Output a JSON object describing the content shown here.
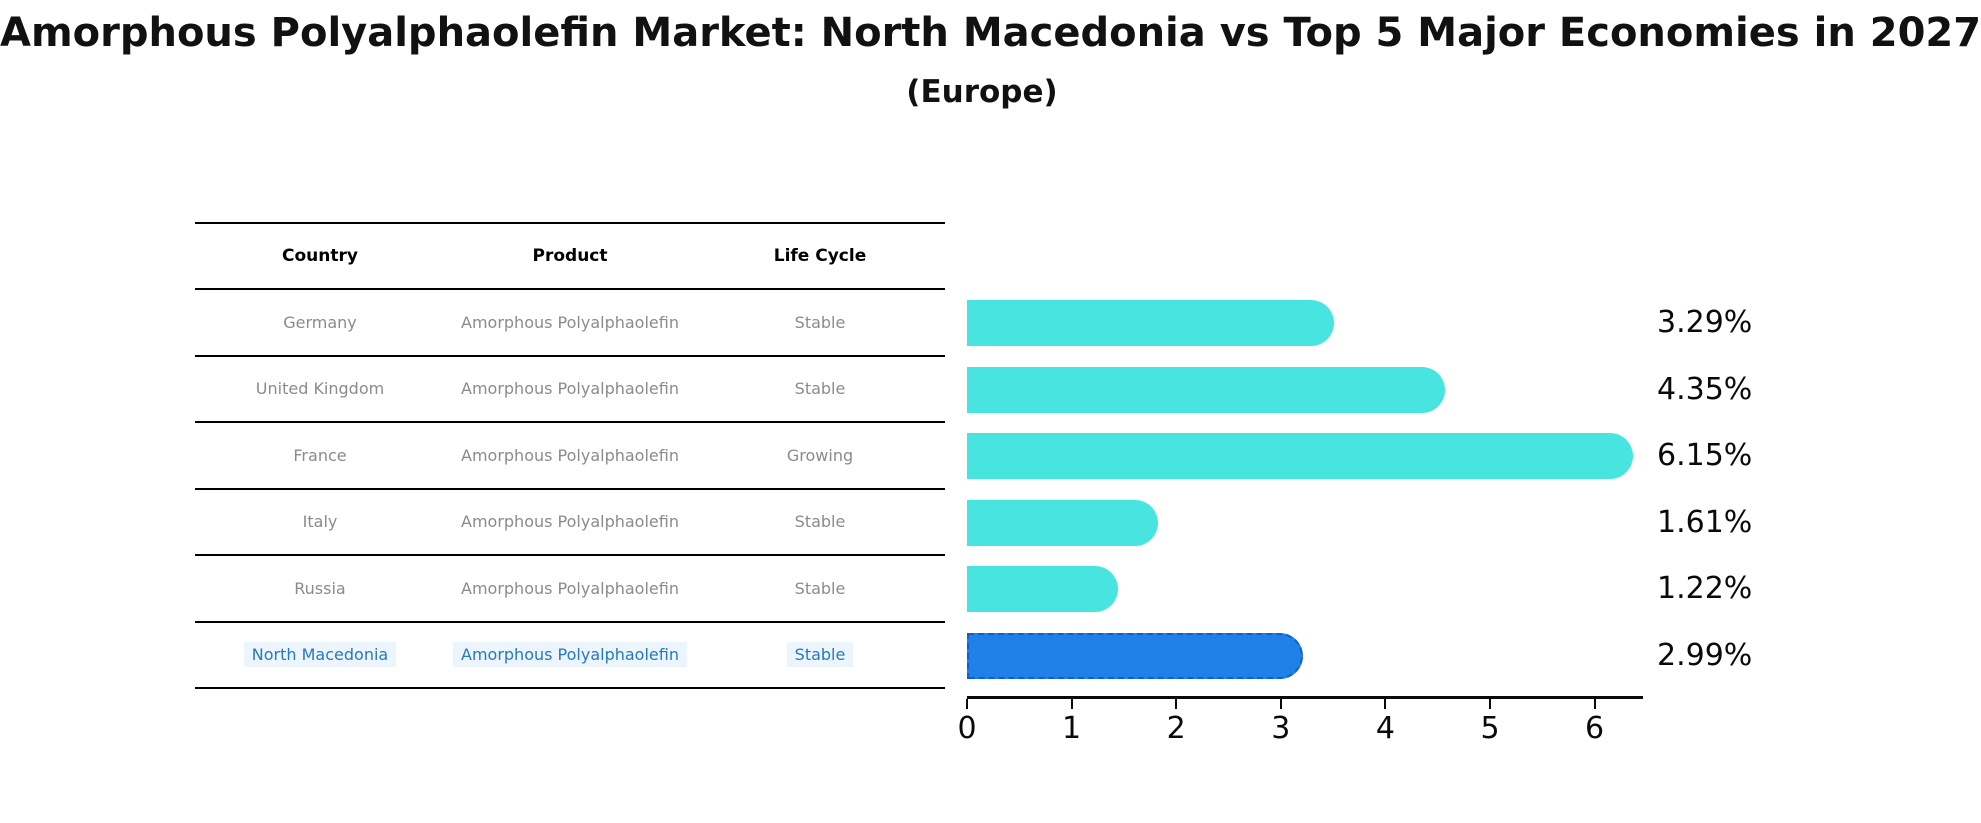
{
  "title": "Amorphous Polyalphaolefin Market: North Macedonia vs Top 5 Major Economies in 2027",
  "subtitle": "(Europe)",
  "table": {
    "headers": [
      "Country",
      "Product",
      "Life Cycle"
    ],
    "rows": [
      {
        "country": "Germany",
        "product": "Amorphous Polyalphaolefin",
        "life_cycle": "Stable",
        "highlight": false
      },
      {
        "country": "United Kingdom",
        "product": "Amorphous Polyalphaolefin",
        "life_cycle": "Stable",
        "highlight": false
      },
      {
        "country": "France",
        "product": "Amorphous Polyalphaolefin",
        "life_cycle": "Growing",
        "highlight": false
      },
      {
        "country": "Italy",
        "product": "Amorphous Polyalphaolefin",
        "life_cycle": "Stable",
        "highlight": false
      },
      {
        "country": "Russia",
        "product": "Amorphous Polyalphaolefin",
        "life_cycle": "Stable",
        "highlight": false
      },
      {
        "country": "North Macedonia",
        "product": "Amorphous Polyalphaolefin",
        "life_cycle": "Stable",
        "highlight": true
      }
    ]
  },
  "chart_data": {
    "type": "bar",
    "orientation": "horizontal",
    "title": "Amorphous Polyalphaolefin Market: North Macedonia vs Top 5 Major Economies in 2027 (Europe)",
    "categories": [
      "Germany",
      "United Kingdom",
      "France",
      "Italy",
      "Russia",
      "North Macedonia"
    ],
    "values": [
      3.29,
      4.35,
      6.15,
      1.61,
      1.22,
      2.99
    ],
    "value_labels": [
      "3.29%",
      "4.35%",
      "6.15%",
      "1.61%",
      "1.22%",
      "2.99%"
    ],
    "x_ticks": [
      0,
      1,
      2,
      3,
      4,
      5,
      6
    ],
    "xlim": [
      0,
      6.5
    ],
    "grid": false,
    "legend": false,
    "bar_color": "#48E5E0",
    "highlight_index": 5,
    "highlight_color": "#1E80E8",
    "highlight_border_color": "#1060C4",
    "highlight_text_color": "#2878BE",
    "highlight_text_bg": "#EBF5FB"
  }
}
